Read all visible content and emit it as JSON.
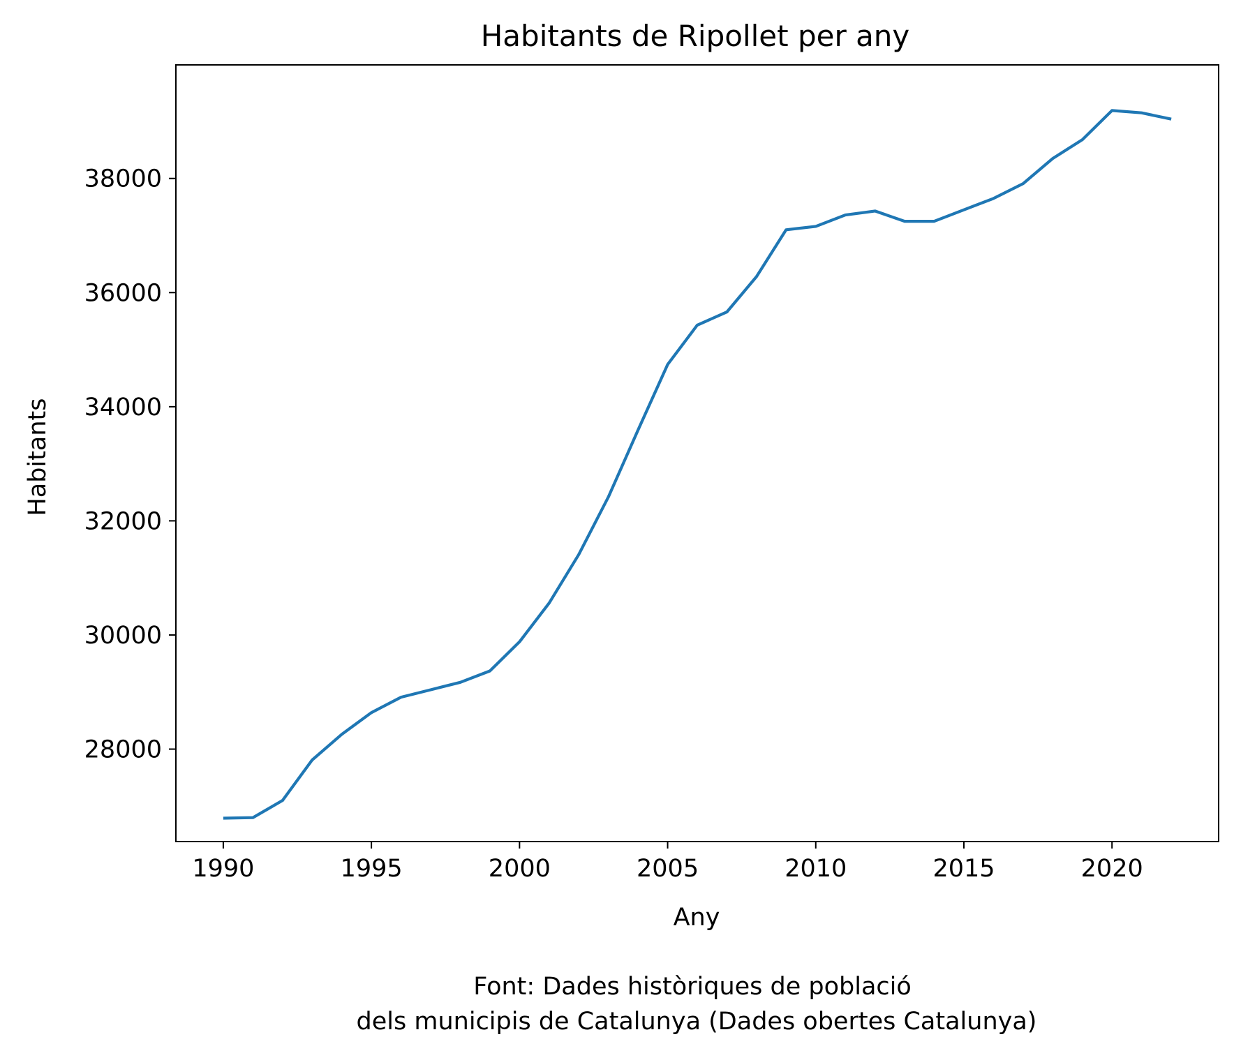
{
  "chart_data": {
    "type": "line",
    "title": "Habitants de Ripollet per any",
    "xlabel": "Any",
    "ylabel": "Habitants",
    "xlim": [
      1988.4,
      2023.6
    ],
    "ylim": [
      26380,
      39990
    ],
    "xticks": [
      1990,
      1995,
      2000,
      2005,
      2010,
      2015,
      2020
    ],
    "yticks": [
      28000,
      30000,
      32000,
      34000,
      36000,
      38000
    ],
    "grid": false,
    "legend": "none",
    "series": [
      {
        "color": "#1f77b4",
        "x": [
          1990,
          1991,
          1992,
          1993,
          1994,
          1995,
          1996,
          1997,
          1998,
          1999,
          2000,
          2001,
          2002,
          2003,
          2004,
          2005,
          2006,
          2007,
          2008,
          2009,
          2010,
          2011,
          2012,
          2013,
          2014,
          2015,
          2016,
          2017,
          2018,
          2019,
          2020,
          2021,
          2022
        ],
        "y": [
          26790,
          26800,
          27100,
          27810,
          28260,
          28640,
          28910,
          29040,
          29170,
          29370,
          29880,
          30560,
          31410,
          32420,
          33590,
          34740,
          35430,
          35660,
          36280,
          37100,
          37160,
          37360,
          37430,
          37250,
          37250,
          37450,
          37650,
          37910,
          38350,
          38680,
          39190,
          39150,
          39040
        ]
      }
    ],
    "footnote": [
      "Font: Dades històriques de població",
      "dels municipis de Catalunya (Dades obertes Catalunya)"
    ]
  }
}
